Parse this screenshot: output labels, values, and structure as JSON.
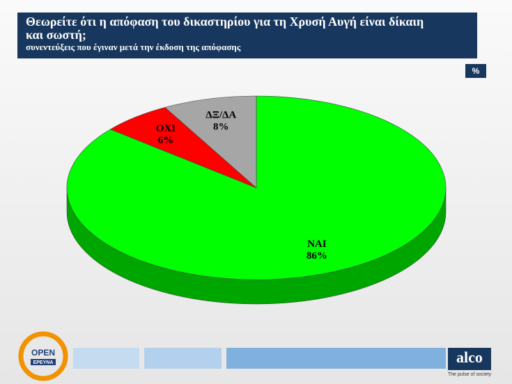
{
  "chart_data": {
    "type": "pie",
    "title": "Θεωρείτε ότι η απόφαση του δικαστηρίου για τη Χρυσή Αυγή είναι δίκαιη και σωστή;",
    "subtitle": "συνεντεύξεις που έγιναν μετά την έκδοση της απόφασης",
    "unit": "%",
    "categories": [
      "ΝΑΙ",
      "ΟΧΙ",
      "ΔΞ/ΔΑ"
    ],
    "values": [
      86,
      6,
      8
    ],
    "value_labels": [
      "86%",
      "6%",
      "8%"
    ],
    "colors": [
      "#00ff00",
      "#ff0000",
      "#a6a6a6"
    ]
  },
  "footer": {
    "left_logo": [
      "OPEN",
      "ΕΡΕΥΝΑ"
    ],
    "right_logo": "alco",
    "tagline": "The pulse of society"
  }
}
